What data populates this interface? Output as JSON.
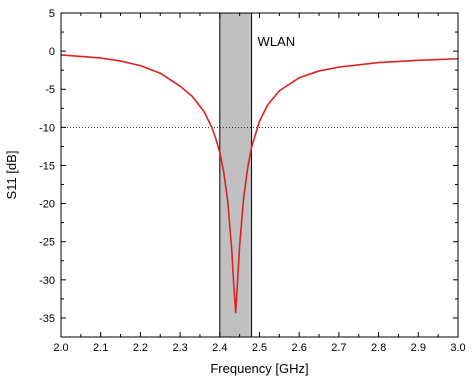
{
  "chart_data": {
    "type": "line",
    "xlabel": "Frequency [GHz]",
    "ylabel": "S11 [dB]",
    "xlim": [
      2.0,
      3.0
    ],
    "ylim": [
      -37.5,
      5
    ],
    "x_ticks": [
      2.0,
      2.1,
      2.2,
      2.3,
      2.4,
      2.5,
      2.6,
      2.7,
      2.8,
      2.9,
      3.0
    ],
    "x_tick_labels": [
      "2.0",
      "2.1",
      "2.2",
      "2.3",
      "2.4",
      "2.5",
      "2.6",
      "2.7",
      "2.8",
      "2.9",
      "3.0"
    ],
    "y_ticks": [
      5,
      0,
      -5,
      -10,
      -15,
      -20,
      -25,
      -30,
      -35
    ],
    "y_tick_labels": [
      "5",
      "0",
      "-5",
      "-10",
      "-15",
      "-20",
      "-25",
      "-30",
      "-35"
    ],
    "grid": false,
    "legend": "none",
    "series": [
      {
        "color": "#dd2222",
        "x": [
          2.0,
          2.05,
          2.1,
          2.15,
          2.2,
          2.25,
          2.3,
          2.33,
          2.36,
          2.38,
          2.39,
          2.4,
          2.41,
          2.42,
          2.43,
          2.435,
          2.44,
          2.445,
          2.45,
          2.46,
          2.47,
          2.48,
          2.5,
          2.52,
          2.55,
          2.6,
          2.65,
          2.7,
          2.8,
          2.9,
          3.0
        ],
        "y": [
          -0.5,
          -0.7,
          -0.9,
          -1.3,
          -1.9,
          -2.9,
          -4.6,
          -5.9,
          -7.9,
          -10.0,
          -11.5,
          -13.3,
          -15.9,
          -19.7,
          -26.0,
          -30.5,
          -34.3,
          -30.0,
          -25.5,
          -19.3,
          -15.4,
          -12.6,
          -9.2,
          -7.1,
          -5.2,
          -3.5,
          -2.6,
          -2.1,
          -1.5,
          -1.2,
          -1.0
        ]
      }
    ],
    "reference_line": {
      "y": -10,
      "style": "dotted",
      "color": "#000000"
    },
    "shaded_band": {
      "x_start": 2.4,
      "x_end": 2.48,
      "color": "#c0c0c0",
      "label": "WLAN"
    }
  }
}
